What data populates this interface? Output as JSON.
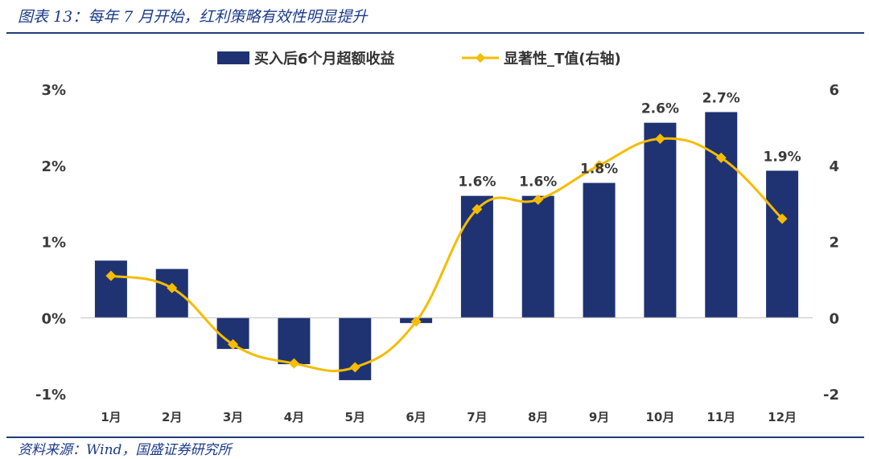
{
  "caption": "图表 13：每年 7 月开始，红利策略有效性明显提升",
  "source": "资料来源：Wind，国盛证券研究所",
  "colors": {
    "bar": "#1f3373",
    "line": "#f5bc00",
    "rule": "#1f3d7a"
  },
  "chart_data": {
    "type": "bar",
    "categories": [
      "1月",
      "2月",
      "3月",
      "4月",
      "5月",
      "6月",
      "7月",
      "8月",
      "9月",
      "10月",
      "11月",
      "12月"
    ],
    "series": [
      {
        "name": "买入后6个月超额收益",
        "type": "bar",
        "axis": "left",
        "values": [
          0.75,
          0.64,
          -0.41,
          -0.61,
          -0.82,
          -0.07,
          1.6,
          1.6,
          1.77,
          2.56,
          2.7,
          1.93
        ],
        "data_labels": [
          "",
          "",
          "",
          "",
          "",
          "",
          "1.6%",
          "1.6%",
          "1.8%",
          "2.6%",
          "2.7%",
          "1.9%"
        ]
      },
      {
        "name": "显著性_T值(右轴)",
        "type": "line",
        "axis": "right",
        "values": [
          1.1,
          0.78,
          -0.7,
          -1.2,
          -1.3,
          -0.1,
          2.85,
          3.1,
          4.0,
          4.7,
          4.2,
          2.6
        ]
      }
    ],
    "y_left": {
      "ylim": [
        -1,
        3
      ],
      "ticks": [
        -1,
        0,
        1,
        2,
        3
      ],
      "tick_labels": [
        "-1%",
        "0%",
        "1%",
        "2%",
        "3%"
      ]
    },
    "y_right": {
      "ylim": [
        -2,
        6
      ],
      "ticks": [
        -2,
        0,
        2,
        4,
        6
      ],
      "tick_labels": [
        "-2",
        "0",
        "2",
        "4",
        "6"
      ]
    },
    "legend_position": "top-center",
    "grid": false
  }
}
